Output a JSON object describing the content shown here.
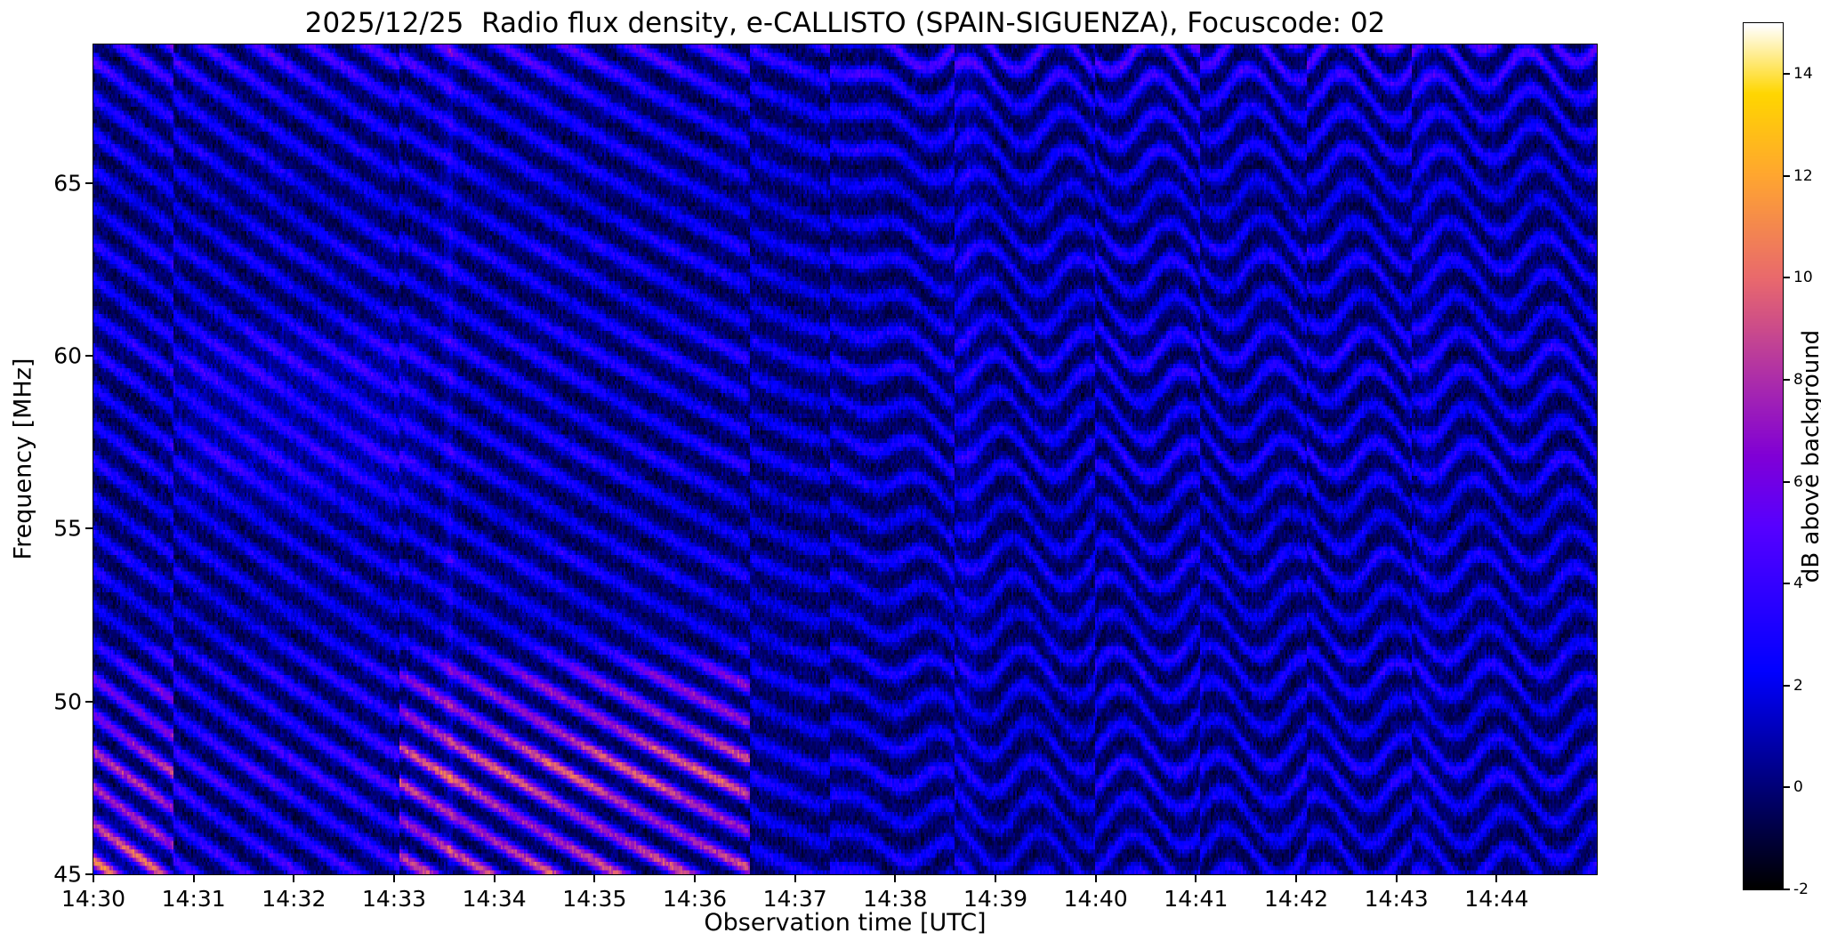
{
  "figure": {
    "background": "#ffffff"
  },
  "chart_data": {
    "type": "heatmap",
    "title": "2025/12/25  Radio flux density, e-CALLISTO (SPAIN-SIGUENZA), Focuscode: 02",
    "xlabel": "Observation time [UTC]",
    "ylabel": "Frequency [MHz]",
    "x_tick_labels": [
      "14:30",
      "14:31",
      "14:32",
      "14:33",
      "14:34",
      "14:35",
      "14:36",
      "14:37",
      "14:38",
      "14:39",
      "14:40",
      "14:41",
      "14:42",
      "14:43",
      "14:44"
    ],
    "x_range_minutes": [
      0,
      15
    ],
    "y_tick_values": [
      45,
      50,
      55,
      60,
      65
    ],
    "y_range_mhz": [
      45,
      69
    ],
    "grid": false,
    "colorbar": {
      "label": "dB above background",
      "tick_values": [
        -2,
        0,
        2,
        4,
        6,
        8,
        10,
        12,
        14
      ],
      "vmin": -2,
      "vmax": 15,
      "colormap": "gnuplot2-like",
      "colormap_stops": [
        [
          0.0,
          "#000000"
        ],
        [
          0.118,
          "#000078"
        ],
        [
          0.235,
          "#0000f0"
        ],
        [
          0.25,
          "#0000ff"
        ],
        [
          0.42,
          "#5700ff"
        ],
        [
          0.5,
          "#8000d6"
        ],
        [
          0.588,
          "#ac2daa"
        ],
        [
          0.706,
          "#e9696d"
        ],
        [
          0.824,
          "#ffa531"
        ],
        [
          0.92,
          "#ffd600"
        ],
        [
          0.96,
          "#ffeb80"
        ],
        [
          1.0,
          "#ffffff"
        ]
      ]
    },
    "data_summary": "Dynamic radio spectrum (45-69 MHz, 14:30-14:45 UTC) dominated by drifting interference fringes about 1 MHz apart. Fringes slope downward in frequency (~2 MHz/min) until ~14:38, then flatten into nearly horizontal bands undulating with ~1-minute period. Brightest fringes (magenta/pink, ~6-10 dB) occur below 51 MHz between 14:30 and ~14:36.5 with a pink hotspot near 45-46.5 MHz at 14:30. Elsewhere fringe peaks are ~3-4 dB (blue) over a ~0 dB (black) background, with vertical step discontinuities near 14:30.8, 14:33, 14:36.5, 14:37.3, 14:38.6, 14:40, 14:41, 14:42.1 and 14:43.1.",
    "pattern": {
      "fringe_spacing_mhz": 1.05,
      "fringe_sharpness": 1.7,
      "base_db": -0.35,
      "noise_db": 1.15,
      "drift_stripes_per_min": [
        [
          0,
          2.05
        ],
        [
          6.5,
          1.35
        ],
        [
          8.2,
          0.45
        ],
        [
          15,
          0.4
        ]
      ],
      "wobble": {
        "start_min": 6.8,
        "full_min": 9.2,
        "amp_stripes": 0.55,
        "period_s": 56,
        "phase_per_mhz": 0.22
      },
      "segments": [
        {
          "t0": 0.0,
          "t1": 0.8,
          "phase": 0.0,
          "amp_hi": 3.4,
          "amp_lo": 7.2
        },
        {
          "t0": 0.8,
          "t1": 3.05,
          "phase": 0.38,
          "amp_hi": 3.2,
          "amp_lo": 4.3
        },
        {
          "t0": 3.05,
          "t1": 6.55,
          "phase": 0.12,
          "amp_hi": 3.3,
          "amp_lo": 8.4
        },
        {
          "t0": 6.55,
          "t1": 7.35,
          "phase": 0.55,
          "amp_hi": 2.7,
          "amp_lo": 2.8
        },
        {
          "t0": 7.35,
          "t1": 8.6,
          "phase": 0.2,
          "amp_hi": 3.1,
          "amp_lo": 3.0
        },
        {
          "t0": 8.6,
          "t1": 10.0,
          "phase": 0.68,
          "amp_hi": 3.0,
          "amp_lo": 2.6
        },
        {
          "t0": 10.0,
          "t1": 11.05,
          "phase": 0.3,
          "amp_hi": 3.4,
          "amp_lo": 3.2
        },
        {
          "t0": 11.05,
          "t1": 12.1,
          "phase": 0.75,
          "amp_hi": 3.1,
          "amp_lo": 2.9
        },
        {
          "t0": 12.1,
          "t1": 13.15,
          "phase": 0.45,
          "amp_hi": 3.3,
          "amp_lo": 3.1
        },
        {
          "t0": 13.15,
          "t1": 15.01,
          "phase": 0.1,
          "amp_hi": 3.2,
          "amp_lo": 3.0
        }
      ],
      "low_band_top_mhz": 51.0,
      "high_band_boost": {
        "f_start": 66.0,
        "f_full": 68.0,
        "frac": 0.45
      },
      "hot_spot": {
        "t_end_min": 0.7,
        "f_max_mhz": 46.6,
        "extra_db": 3.0
      },
      "haze": {
        "t0": 0.9,
        "t1": 3.3,
        "f0": 55.5,
        "f1": 60.5,
        "extra_db": 0.9
      },
      "bright_columns": [
        {
          "t": 3.55,
          "w": 0.06,
          "db": 1.1
        },
        {
          "t": 8.72,
          "w": 0.1,
          "db": 0.8
        },
        {
          "t": 13.3,
          "w": 0.06,
          "db": 0.7
        }
      ],
      "seed": 42
    }
  }
}
